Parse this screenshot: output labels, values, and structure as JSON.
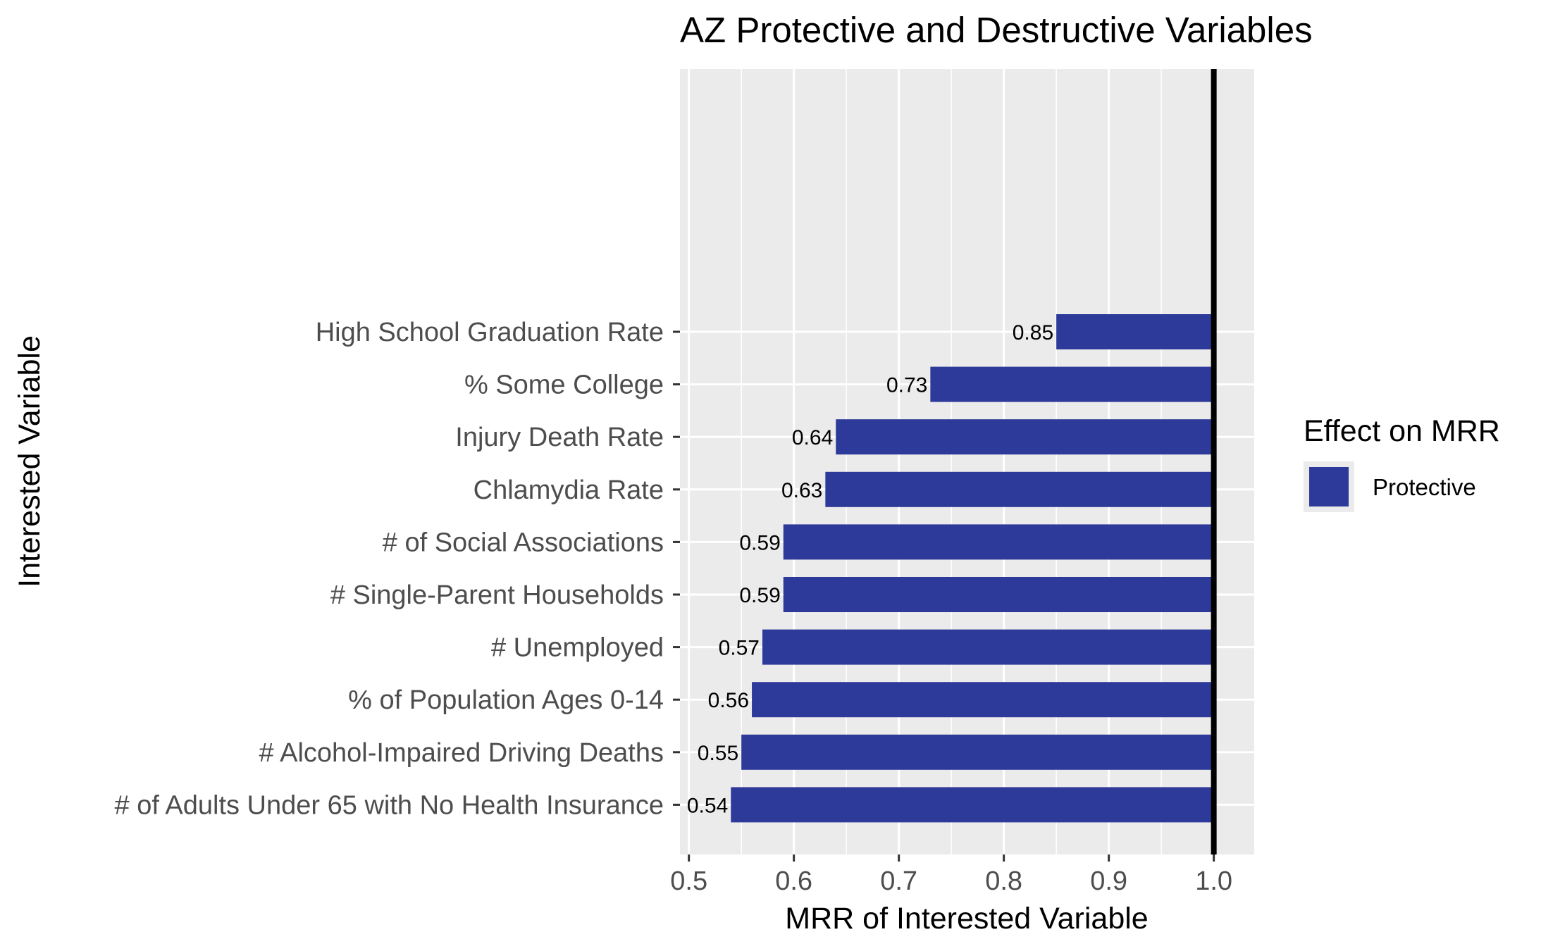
{
  "chart_data": {
    "type": "bar",
    "orientation": "horizontal",
    "title": "AZ Protective and Destructive Variables",
    "xlabel": "MRR of Interested Variable",
    "ylabel": "Interested Variable",
    "xlim": [
      0.5,
      1.0
    ],
    "x_ticks": [
      "0.5",
      "0.6",
      "0.7",
      "0.8",
      "0.9",
      "1.0"
    ],
    "reference_line": 1.0,
    "grid": true,
    "categories": [
      "High School Graduation Rate",
      "% Some College",
      "Injury Death Rate",
      "Chlamydia Rate",
      "# of Social Associations",
      "# Single-Parent Households",
      "# Unemployed",
      "% of Population Ages 0-14",
      "# Alcohol-Impaired Driving Deaths",
      "# of Adults Under 65 with No Health Insurance"
    ],
    "values": [
      0.85,
      0.73,
      0.64,
      0.63,
      0.59,
      0.59,
      0.57,
      0.56,
      0.55,
      0.54
    ],
    "value_labels": [
      "0.85",
      "0.73",
      "0.64",
      "0.63",
      "0.59",
      "0.59",
      "0.57",
      "0.56",
      "0.55",
      "0.54"
    ],
    "series": [
      {
        "name": "Protective",
        "color": "#2e3a99"
      }
    ],
    "legend": {
      "title": "Effect on MRR",
      "position": "right"
    }
  }
}
